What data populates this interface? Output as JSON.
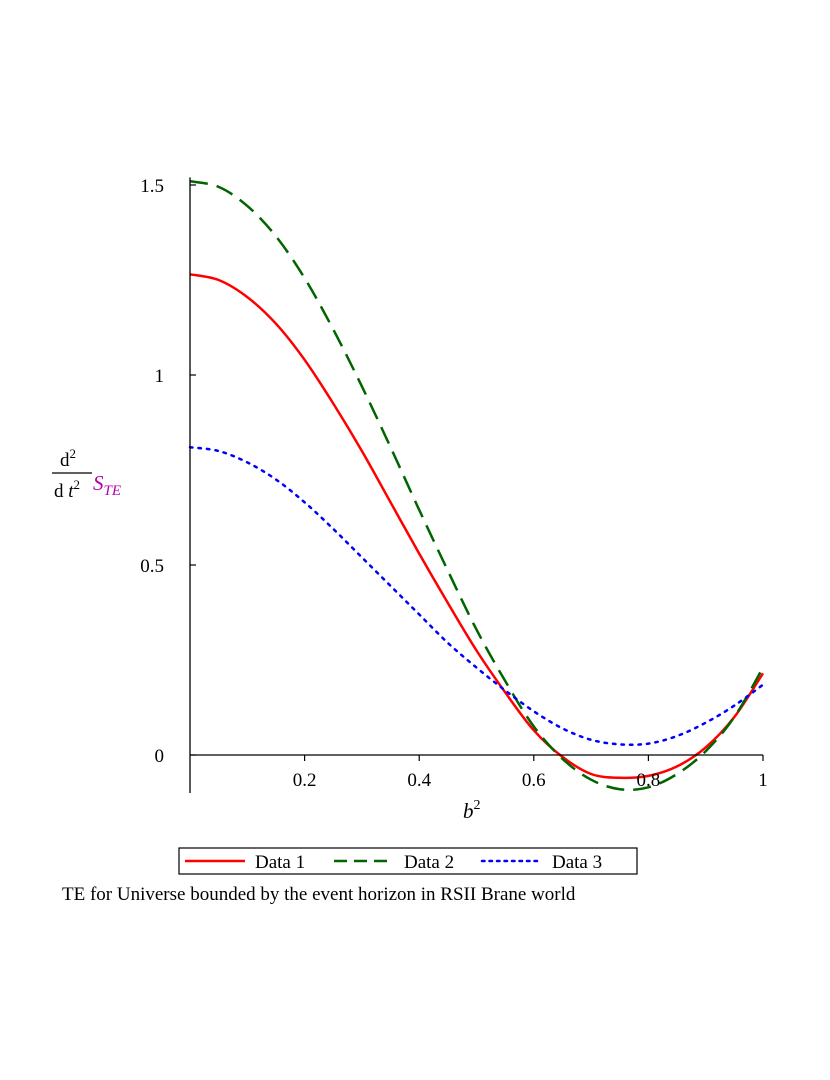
{
  "chart_data": {
    "type": "line",
    "title": "",
    "caption": "TE for Universe bounded by the event horizon  in RSII Brane world",
    "xlabel": {
      "base": "b",
      "exponent": "2"
    },
    "ylabel": {
      "numerator": "d",
      "numerator_exp": "2",
      "denominator": "d ",
      "denominator_var": "t",
      "denominator_exp": "2",
      "symbol": "S",
      "subscript": "TE"
    },
    "xlim": [
      0,
      1
    ],
    "ylim": [
      -0.1,
      1.52
    ],
    "x_ticks": [
      {
        "value": 0.2,
        "label": "0.2"
      },
      {
        "value": 0.4,
        "label": "0.4"
      },
      {
        "value": 0.6,
        "label": "0.6"
      },
      {
        "value": 0.8,
        "label": "0.8"
      },
      {
        "value": 1.0,
        "label": "1"
      }
    ],
    "y_ticks": [
      {
        "value": 0,
        "label": "0"
      },
      {
        "value": 0.5,
        "label": "0.5"
      },
      {
        "value": 1,
        "label": "1"
      },
      {
        "value": 1.5,
        "label": "1.5"
      }
    ],
    "grid": false,
    "legend_position": "bottom",
    "series": [
      {
        "name": "Data 1",
        "color": "#ff0000",
        "style": "solid",
        "x": [
          0,
          0.05,
          0.1,
          0.15,
          0.2,
          0.25,
          0.3,
          0.35,
          0.4,
          0.45,
          0.5,
          0.55,
          0.6,
          0.65,
          0.7,
          0.75,
          0.8,
          0.85,
          0.9,
          0.95,
          1.0
        ],
        "y": [
          1.265,
          1.25,
          1.205,
          1.135,
          1.04,
          0.925,
          0.8,
          0.665,
          0.53,
          0.4,
          0.275,
          0.165,
          0.065,
          -0.005,
          -0.05,
          -0.06,
          -0.055,
          -0.03,
          0.02,
          0.1,
          0.215
        ]
      },
      {
        "name": "Data 2",
        "color": "#006400",
        "style": "dashed",
        "x": [
          0,
          0.05,
          0.1,
          0.15,
          0.2,
          0.25,
          0.3,
          0.35,
          0.4,
          0.45,
          0.5,
          0.55,
          0.6,
          0.65,
          0.7,
          0.75,
          0.8,
          0.85,
          0.9,
          0.95,
          1.0
        ],
        "y": [
          1.51,
          1.495,
          1.445,
          1.365,
          1.255,
          1.12,
          0.97,
          0.81,
          0.645,
          0.485,
          0.33,
          0.195,
          0.075,
          -0.01,
          -0.065,
          -0.09,
          -0.085,
          -0.05,
          0.01,
          0.1,
          0.23
        ]
      },
      {
        "name": "Data 3",
        "color": "#0000ff",
        "style": "dotted",
        "x": [
          0,
          0.05,
          0.1,
          0.15,
          0.2,
          0.25,
          0.3,
          0.35,
          0.4,
          0.45,
          0.5,
          0.55,
          0.6,
          0.65,
          0.7,
          0.75,
          0.8,
          0.85,
          0.9,
          0.95,
          1.0
        ],
        "y": [
          0.81,
          0.8,
          0.77,
          0.725,
          0.665,
          0.595,
          0.52,
          0.445,
          0.37,
          0.295,
          0.23,
          0.17,
          0.115,
          0.07,
          0.04,
          0.028,
          0.03,
          0.05,
          0.085,
          0.13,
          0.185
        ]
      }
    ]
  }
}
